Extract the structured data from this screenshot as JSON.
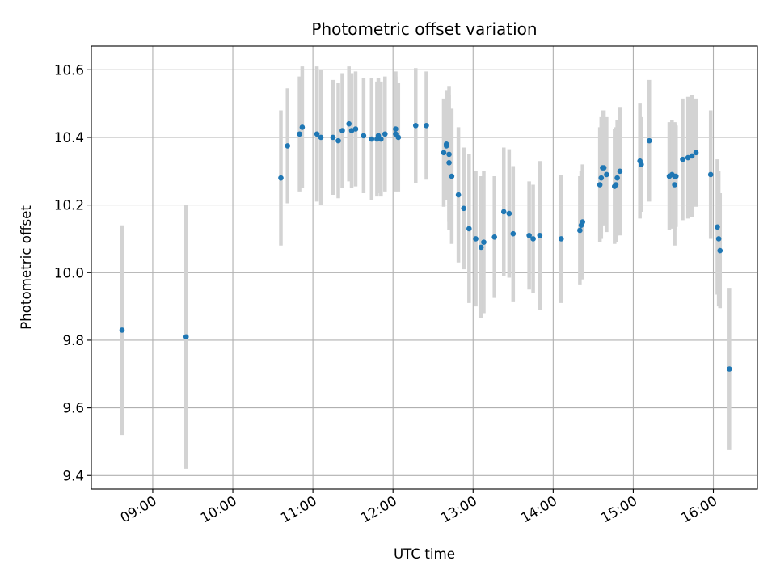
{
  "chart_data": {
    "type": "scatter",
    "title": "Photometric offset variation",
    "xlabel": "UTC time",
    "ylabel": "Photometric offset",
    "x_ticks": [
      "09:00",
      "10:00",
      "11:00",
      "12:00",
      "13:00",
      "14:00",
      "15:00",
      "16:00"
    ],
    "y_ticks": [
      "9.4",
      "9.6",
      "9.8",
      "10.0",
      "10.2",
      "10.4",
      "10.6"
    ],
    "xlim": [
      "08:14",
      "16:33"
    ],
    "ylim": [
      9.36,
      10.67
    ],
    "grid": true,
    "legend": "none",
    "colors": {
      "points": "#1f77b4",
      "error_bars": "#d3d3d3",
      "grid": "#b0b0b0"
    },
    "series": [
      {
        "x": [
          "08:37",
          "09:25",
          "10:36",
          "10:41",
          "10:50",
          "10:52",
          "11:03",
          "11:06",
          "11:15",
          "11:19",
          "11:22",
          "11:27",
          "11:29",
          "11:32",
          "11:38",
          "11:44",
          "11:48",
          "11:49",
          "11:51",
          "11:54",
          "12:02",
          "12:02",
          "12:04",
          "12:17",
          "12:25",
          "12:38",
          "12:40",
          "12:40",
          "12:42",
          "12:42",
          "12:44",
          "12:49",
          "12:53",
          "12:57",
          "13:02",
          "13:06",
          "13:08",
          "13:16",
          "13:23",
          "13:27",
          "13:30",
          "13:42",
          "13:45",
          "13:50",
          "14:06",
          "14:20",
          "14:21",
          "14:22",
          "14:35",
          "14:36",
          "14:37",
          "14:38",
          "14:40",
          "14:46",
          "14:47",
          "14:48",
          "14:50",
          "15:05",
          "15:06",
          "15:12",
          "15:27",
          "15:29",
          "15:31",
          "15:31",
          "15:32",
          "15:37",
          "15:41",
          "15:44",
          "15:47",
          "15:58",
          "16:03",
          "16:04",
          "16:05",
          "16:12"
        ],
        "y": [
          9.83,
          9.81,
          10.28,
          10.375,
          10.41,
          10.43,
          10.41,
          10.4,
          10.4,
          10.39,
          10.42,
          10.44,
          10.42,
          10.425,
          10.405,
          10.395,
          10.395,
          10.405,
          10.395,
          10.41,
          10.425,
          10.41,
          10.4,
          10.435,
          10.435,
          10.355,
          10.38,
          10.375,
          10.35,
          10.325,
          10.285,
          10.23,
          10.19,
          10.13,
          10.1,
          10.075,
          10.09,
          10.105,
          10.18,
          10.175,
          10.115,
          10.11,
          10.1,
          10.11,
          10.1,
          10.125,
          10.14,
          10.15,
          10.26,
          10.28,
          10.31,
          10.31,
          10.29,
          10.255,
          10.26,
          10.28,
          10.3,
          10.33,
          10.32,
          10.39,
          10.285,
          10.29,
          10.285,
          10.26,
          10.285,
          10.335,
          10.34,
          10.345,
          10.355,
          10.29,
          10.135,
          10.1,
          10.065,
          9.715
        ],
        "err": [
          0.31,
          0.39,
          0.2,
          0.17,
          0.17,
          0.18,
          0.2,
          0.2,
          0.17,
          0.17,
          0.17,
          0.17,
          0.17,
          0.17,
          0.17,
          0.18,
          0.17,
          0.17,
          0.17,
          0.17,
          0.17,
          0.17,
          0.16,
          0.17,
          0.16,
          0.16,
          0.16,
          0.16,
          0.2,
          0.2,
          0.2,
          0.2,
          0.18,
          0.22,
          0.2,
          0.21,
          0.21,
          0.18,
          0.19,
          0.19,
          0.2,
          0.16,
          0.16,
          0.22,
          0.19,
          0.16,
          0.16,
          0.17,
          0.17,
          0.18,
          0.17,
          0.17,
          0.17,
          0.17,
          0.17,
          0.17,
          0.19,
          0.17,
          0.14,
          0.18,
          0.16,
          0.16,
          0.16,
          0.18,
          0.15,
          0.18,
          0.18,
          0.18,
          0.16,
          0.19,
          0.2,
          0.2,
          0.17,
          0.24
        ]
      }
    ]
  }
}
